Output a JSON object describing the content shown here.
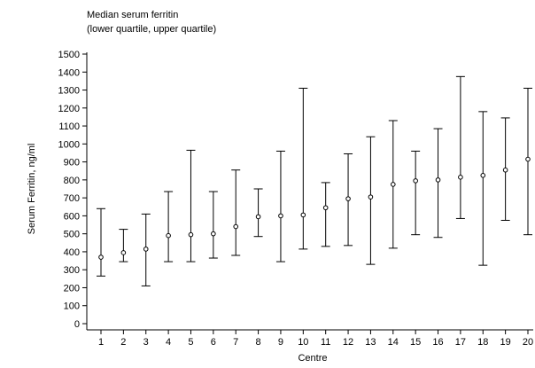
{
  "chart_data": {
    "type": "error-bar",
    "title": "Median serum ferritin",
    "subtitle": "(lower quartile, upper quartile)",
    "xlabel": "Centre",
    "ylabel": "Serum Ferritin, ng/ml",
    "ylim": [
      0,
      1500
    ],
    "yticks": [
      0,
      100,
      200,
      300,
      400,
      500,
      600,
      700,
      800,
      900,
      1000,
      1100,
      1200,
      1300,
      1400,
      1500
    ],
    "grid": false,
    "categories": [
      "1",
      "2",
      "3",
      "4",
      "5",
      "6",
      "7",
      "8",
      "9",
      "10",
      "11",
      "12",
      "13",
      "14",
      "15",
      "16",
      "17",
      "18",
      "19",
      "20"
    ],
    "series": [
      {
        "median": [
          370,
          395,
          415,
          490,
          495,
          500,
          540,
          595,
          600,
          605,
          645,
          695,
          705,
          775,
          795,
          800,
          815,
          825,
          855,
          915
        ],
        "lower_quartile": [
          265,
          345,
          210,
          345,
          345,
          365,
          380,
          485,
          345,
          415,
          430,
          435,
          330,
          420,
          495,
          480,
          585,
          325,
          575,
          495
        ],
        "upper_quartile": [
          640,
          525,
          610,
          735,
          965,
          735,
          855,
          750,
          960,
          1310,
          785,
          945,
          1040,
          1130,
          960,
          1085,
          1375,
          1180,
          1145,
          1310
        ]
      }
    ],
    "colors": {
      "axis": "#000000",
      "marker_fill": "#ffffff",
      "line": "#000000"
    }
  }
}
